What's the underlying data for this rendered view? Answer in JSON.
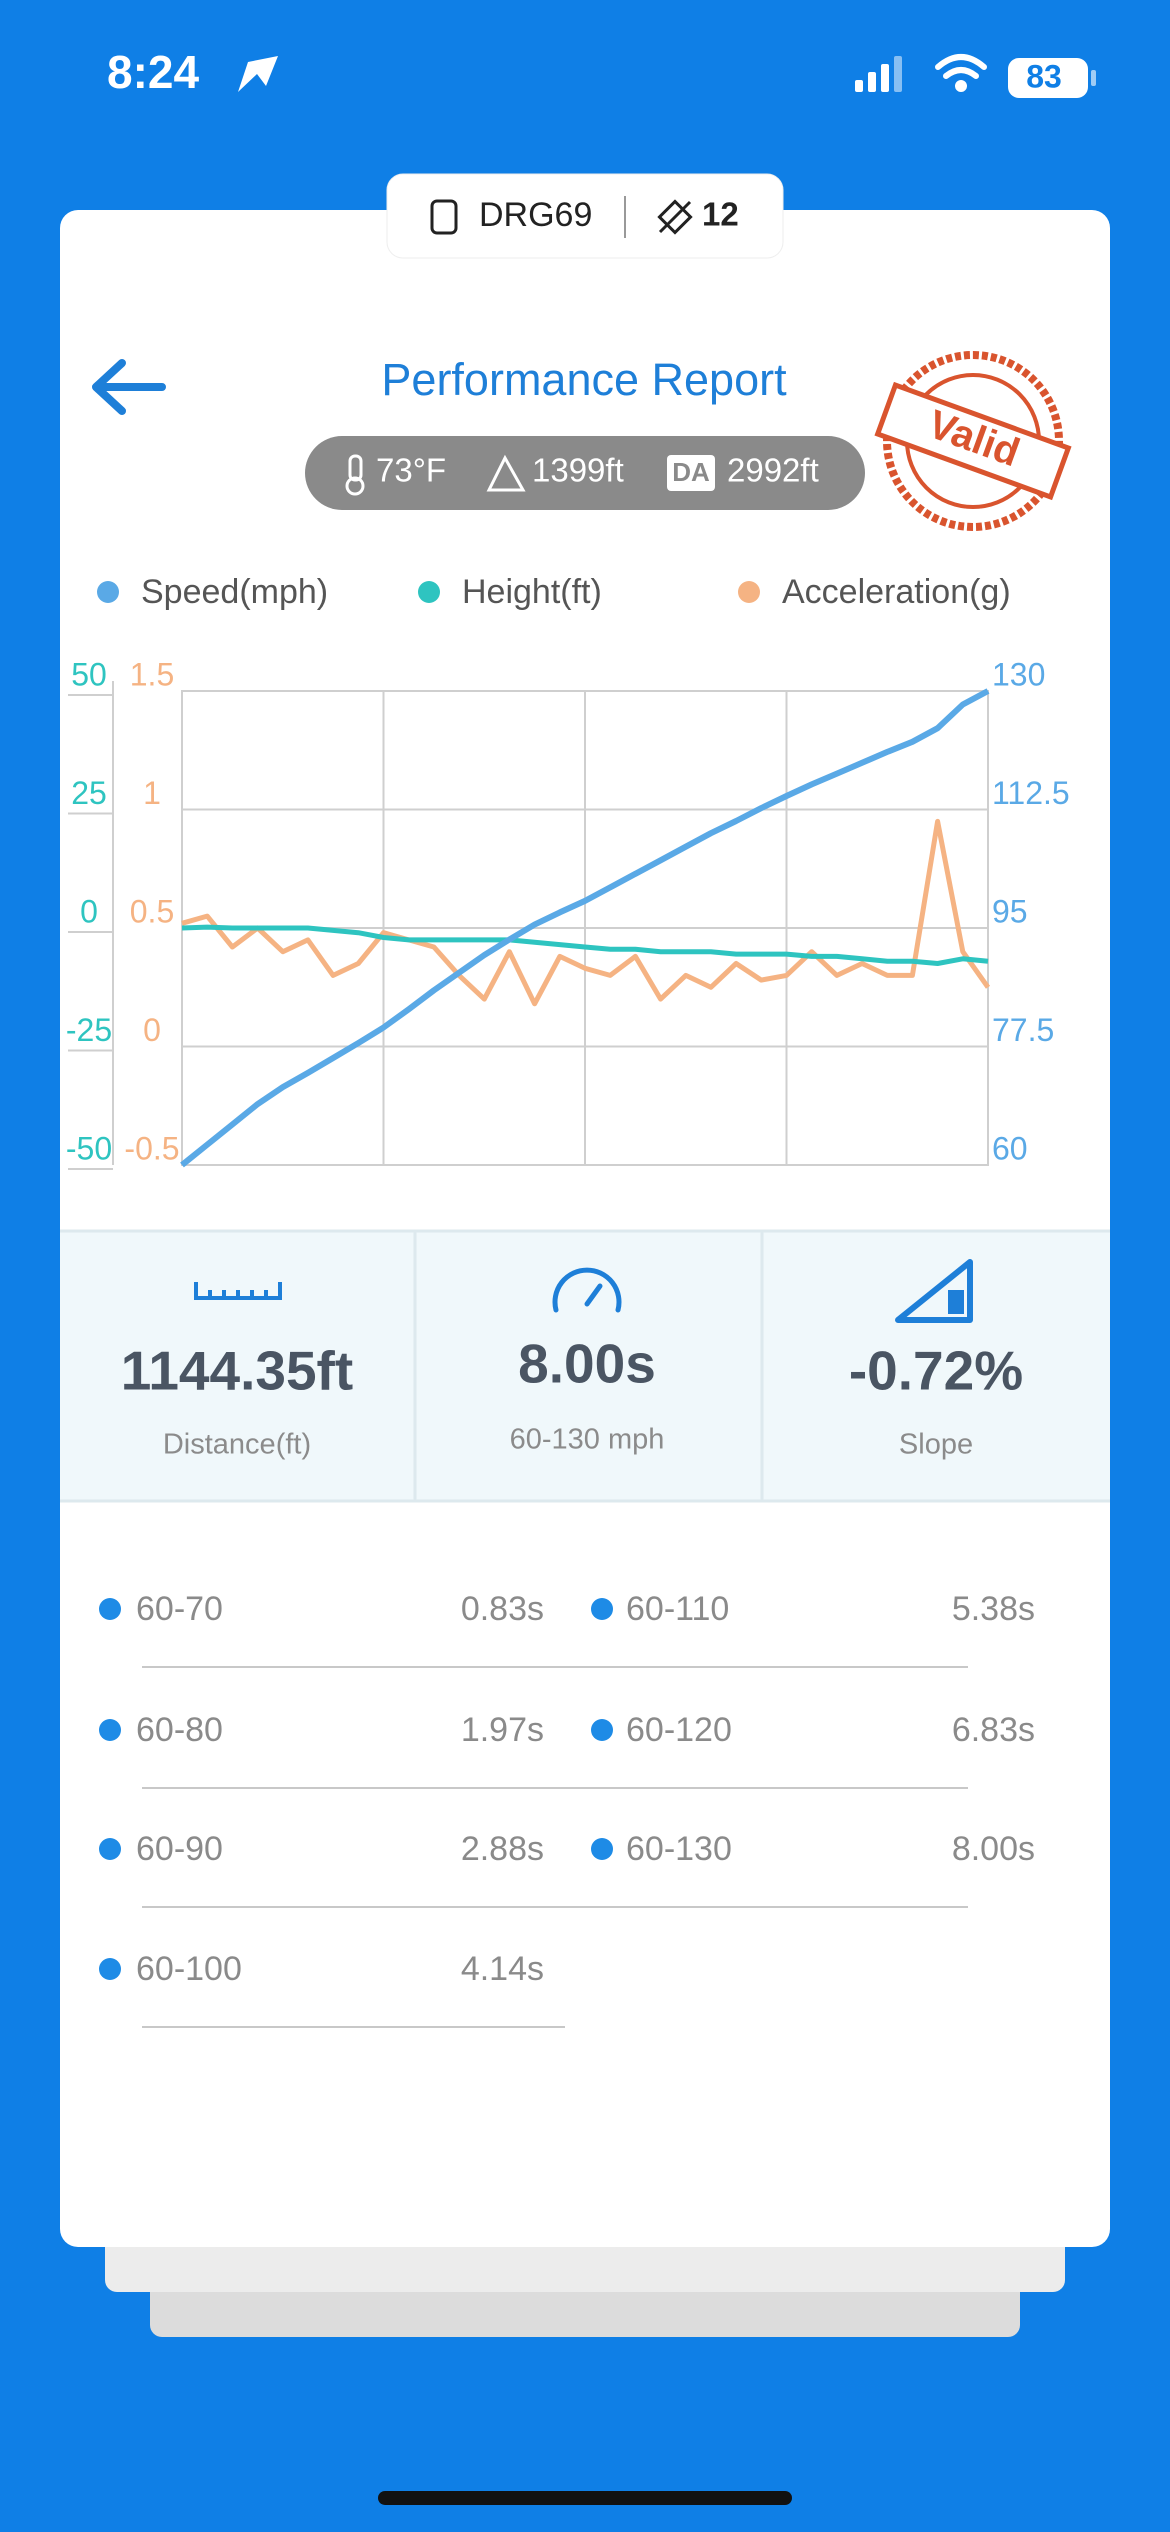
{
  "status_bar": {
    "time": "8:24",
    "battery": 83
  },
  "device": {
    "name": "DRG69",
    "satellites": 12
  },
  "header": {
    "title": "Performance Report",
    "temperature": "73°F",
    "altitude": "1399ft",
    "density_altitude_label": "DA",
    "density_altitude": "2992ft",
    "stamp": "Valid"
  },
  "chart_data": {
    "type": "line",
    "x": [
      0,
      0.25,
      0.5,
      0.75,
      1,
      1.25,
      1.5,
      1.75,
      2,
      2.25,
      2.5,
      2.75,
      3,
      3.25,
      3.5,
      3.75,
      4,
      4.25,
      4.5,
      4.75,
      5,
      5.25,
      5.5,
      5.75,
      6,
      6.25,
      6.5,
      6.75,
      7,
      7.25,
      7.5,
      7.75,
      8
    ],
    "xlim": [
      0,
      8
    ],
    "series": [
      {
        "name": "Speed(mph)",
        "color": "#5aa9e6",
        "axis": "y2",
        "values": [
          60,
          63,
          66,
          69,
          71.5,
          73.6,
          75.8,
          78,
          80.3,
          83,
          85.8,
          88.4,
          91,
          93.3,
          95.5,
          97.3,
          99,
          101,
          103,
          105,
          107,
          109,
          110.8,
          112.7,
          114.5,
          116.2,
          117.8,
          119.4,
          121,
          122.5,
          124.5,
          128,
          130
        ]
      },
      {
        "name": "Height(ft)",
        "color": "#2ec4c0",
        "axis": "y",
        "values": [
          0,
          0.2,
          0,
          0,
          0,
          0,
          -0.5,
          -1,
          -2,
          -2.5,
          -2.5,
          -2.5,
          -2.5,
          -2.5,
          -3,
          -3.5,
          -4,
          -4.5,
          -4.5,
          -5,
          -5,
          -5,
          -5.5,
          -5.5,
          -5.5,
          -6,
          -6,
          -6.5,
          -7,
          -7,
          -7.5,
          -6.5,
          -7
        ]
      },
      {
        "name": "Acceleration(g)",
        "color": "#f5b383",
        "axis": "y3",
        "values": [
          0.52,
          0.55,
          0.42,
          0.5,
          0.4,
          0.45,
          0.3,
          0.35,
          0.48,
          0.45,
          0.42,
          0.3,
          0.2,
          0.4,
          0.18,
          0.38,
          0.33,
          0.3,
          0.38,
          0.2,
          0.3,
          0.25,
          0.35,
          0.28,
          0.3,
          0.4,
          0.3,
          0.35,
          0.3,
          0.3,
          0.95,
          0.4,
          0.25
        ]
      }
    ],
    "ylim": [
      -50,
      50
    ],
    "yticks": [
      -50,
      -25,
      0,
      25,
      50
    ],
    "ycolor": "#2ec4c0",
    "y3lim": [
      -0.5,
      1.5
    ],
    "y3ticks": [
      -0.5,
      0,
      0.5,
      1,
      1.5
    ],
    "y3color": "#f5b383",
    "y2lim": [
      60,
      130
    ],
    "y2ticks": [
      60,
      77.5,
      95,
      112.5,
      130
    ],
    "y2color": "#5aa9e6",
    "grid": true
  },
  "stats": [
    {
      "value": "1144.35ft",
      "label": "Distance(ft)"
    },
    {
      "value": "8.00s",
      "label": "60-130 mph"
    },
    {
      "value": "-0.72%",
      "label": "Slope"
    }
  ],
  "splits": [
    {
      "label": "60-70",
      "time": "0.83s"
    },
    {
      "label": "60-80",
      "time": "1.97s"
    },
    {
      "label": "60-90",
      "time": "2.88s"
    },
    {
      "label": "60-100",
      "time": "4.14s"
    },
    {
      "label": "60-110",
      "time": "5.38s"
    },
    {
      "label": "60-120",
      "time": "6.83s"
    },
    {
      "label": "60-130",
      "time": "8.00s"
    }
  ]
}
